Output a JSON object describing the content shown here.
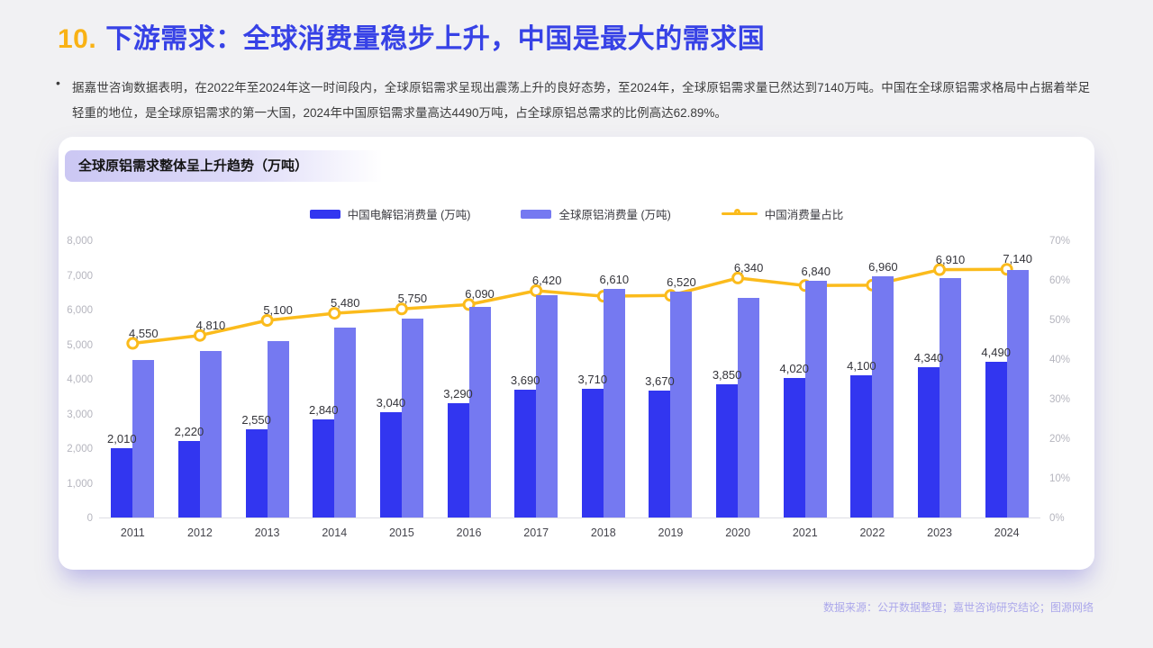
{
  "header": {
    "number": "10.",
    "title": "下游需求：全球消费量稳步上升，中国是最大的需求国"
  },
  "summary": {
    "bullet": "•",
    "text": "据嘉世咨询数据表明，在2022年至2024年这一时间段内，全球原铝需求呈现出震荡上升的良好态势，至2024年，全球原铝需求量已然达到7140万吨。中国在全球原铝需求格局中占据着举足轻重的地位，是全球原铝需求的第一大国，2024年中国原铝需求量高达4490万吨，占全球原铝总需求的比例高达62.89%。"
  },
  "chart": {
    "title": "全球原铝需求整体呈上升趋势（万吨）"
  },
  "chart_data": {
    "type": "bar",
    "title": "全球原铝需求整体呈上升趋势（万吨）",
    "categories": [
      "2011",
      "2012",
      "2013",
      "2014",
      "2015",
      "2016",
      "2017",
      "2018",
      "2019",
      "2020",
      "2021",
      "2022",
      "2023",
      "2024"
    ],
    "series": [
      {
        "name": "中国电解铝消费量 (万吨)",
        "type": "bar",
        "axis": "left",
        "color": "#3236F0",
        "values": [
          2010,
          2220,
          2550,
          2840,
          3040,
          3290,
          3690,
          3710,
          3670,
          3850,
          4020,
          4100,
          4340,
          4490
        ]
      },
      {
        "name": "全球原铝消费量 (万吨)",
        "type": "bar",
        "axis": "left",
        "color": "#7579F1",
        "values": [
          4550,
          4810,
          5100,
          5480,
          5750,
          6090,
          6420,
          6610,
          6520,
          6340,
          6840,
          6960,
          6910,
          7140
        ]
      },
      {
        "name": "中国消费量占比",
        "type": "line",
        "axis": "right",
        "color": "#FBBB1C",
        "values": [
          44.2,
          46.2,
          50.0,
          51.8,
          52.9,
          54.0,
          57.5,
          56.1,
          56.3,
          60.7,
          58.8,
          58.9,
          62.8,
          62.9
        ]
      }
    ],
    "left_axis": {
      "min": 0,
      "max": 8000,
      "step": 1000,
      "tick_labels": [
        "8,000",
        "7,000",
        "6,000",
        "5,000",
        "4,000",
        "3,000",
        "2,000",
        "1,000",
        "0"
      ]
    },
    "right_axis": {
      "min": 0,
      "max": 70,
      "step": 10,
      "tick_labels": [
        "70%",
        "60%",
        "50%",
        "40%",
        "30%",
        "20%",
        "10%",
        "0%"
      ]
    },
    "legend_position": "top",
    "grid": false
  },
  "footer": {
    "source": "数据来源：公开数据整理；嘉世咨询研究结论；图源网络"
  }
}
